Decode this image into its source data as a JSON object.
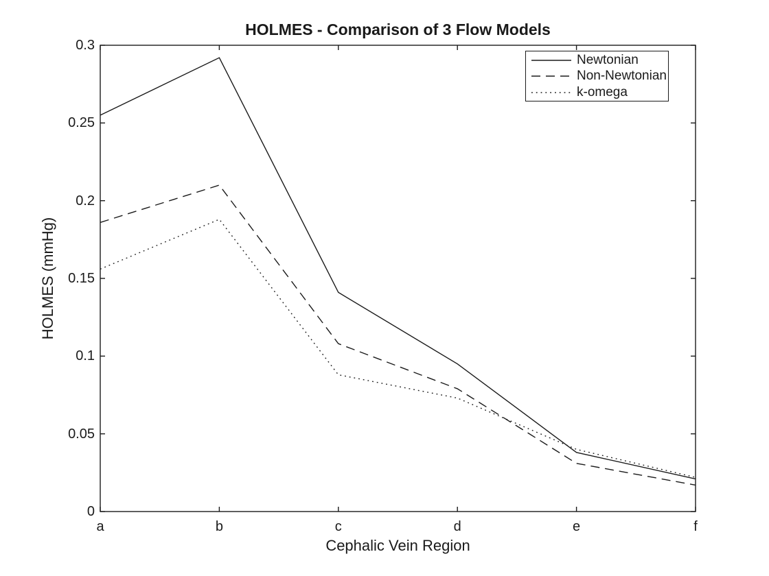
{
  "colors": {
    "background": "#ffffff",
    "axis": "#1a1a1a",
    "text": "#1a1a1a",
    "line": "#1a1a1a"
  },
  "chart_data": {
    "type": "line",
    "title": "HOLMES - Comparison of 3 Flow Models",
    "xlabel": "Cephalic Vein Region",
    "ylabel": "HOLMES (mmHg)",
    "categories": [
      "a",
      "b",
      "c",
      "d",
      "e",
      "f"
    ],
    "ylim": [
      0,
      0.3
    ],
    "yticks": [
      0,
      0.05,
      0.1,
      0.15,
      0.2,
      0.25,
      0.3
    ],
    "ytick_labels": [
      "0",
      "0.05",
      "0.1",
      "0.15",
      "0.2",
      "0.25",
      "0.3"
    ],
    "grid": false,
    "legend_position": "top-right",
    "legend_entries": [
      "Newtonian",
      "Non-Newtonian",
      "k-omega"
    ],
    "series": [
      {
        "name": "Newtonian",
        "style": "solid",
        "values": [
          0.255,
          0.292,
          0.141,
          0.095,
          0.038,
          0.021
        ]
      },
      {
        "name": "Non-Newtonian",
        "style": "dashed",
        "values": [
          0.186,
          0.21,
          0.108,
          0.079,
          0.031,
          0.017
        ]
      },
      {
        "name": "k-omega",
        "style": "dotted",
        "values": [
          0.156,
          0.188,
          0.088,
          0.073,
          0.04,
          0.022
        ]
      }
    ]
  }
}
